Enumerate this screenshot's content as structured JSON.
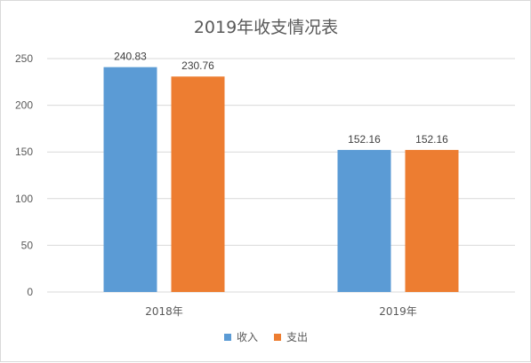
{
  "chart_data": {
    "type": "bar",
    "title": "2019年收支情况表",
    "categories": [
      "2018年",
      "2019年"
    ],
    "series": [
      {
        "name": "收入",
        "values": [
          240.83,
          152.16
        ],
        "color": "#5b9bd5"
      },
      {
        "name": "支出",
        "values": [
          230.76,
          152.16
        ],
        "color": "#ed7d31"
      }
    ],
    "data_labels": [
      [
        "240.83",
        "152.16"
      ],
      [
        "230.76",
        "152.16"
      ]
    ],
    "ylim": [
      0,
      250
    ],
    "yticks": [
      0,
      50,
      100,
      150,
      200,
      250
    ],
    "grid": true,
    "legend_position": "bottom"
  }
}
